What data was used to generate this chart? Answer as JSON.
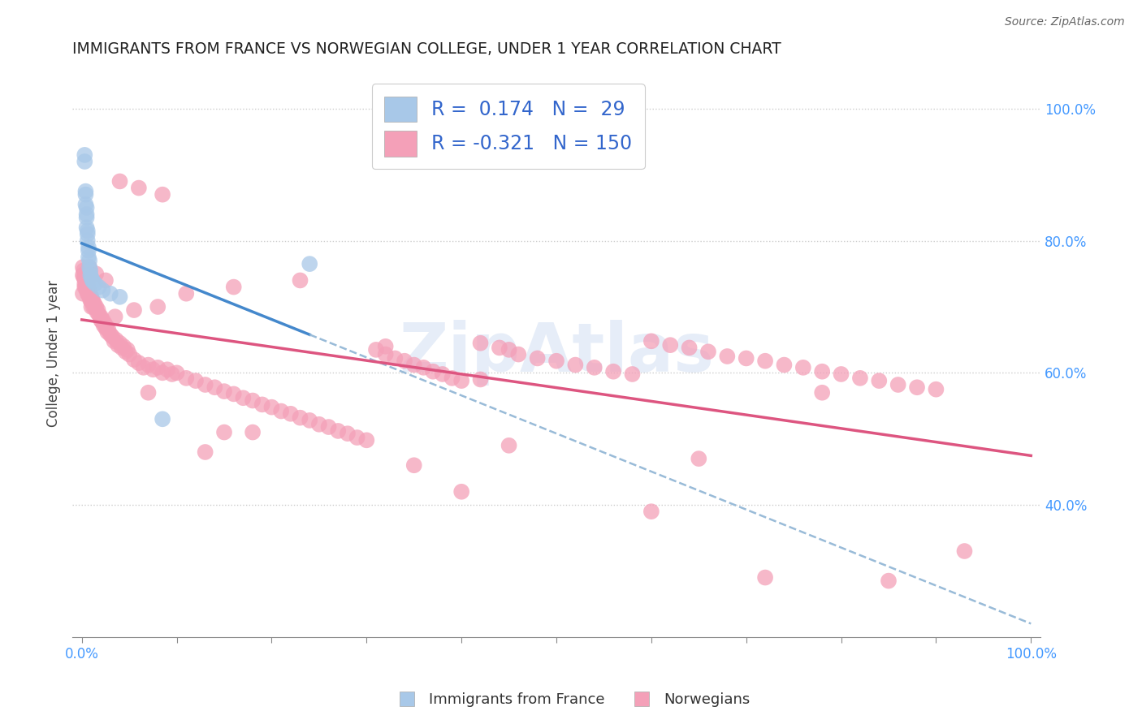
{
  "title": "IMMIGRANTS FROM FRANCE VS NORWEGIAN COLLEGE, UNDER 1 YEAR CORRELATION CHART",
  "source": "Source: ZipAtlas.com",
  "ylabel": "College, Under 1 year",
  "yticks_right": [
    "40.0%",
    "60.0%",
    "80.0%",
    "100.0%"
  ],
  "ytick_values": [
    0.4,
    0.6,
    0.8,
    1.0
  ],
  "blue_R": 0.174,
  "blue_N": 29,
  "pink_R": -0.321,
  "pink_N": 150,
  "blue_scatter_color": "#a8c8e8",
  "pink_scatter_color": "#f4a0b8",
  "blue_line_color": "#4488cc",
  "pink_line_color": "#dd5580",
  "blue_dashed_color": "#99bbd8",
  "background_color": "#ffffff",
  "grid_color": "#cccccc",
  "watermark_color": "#c8d8f0",
  "blue_points_x": [
    0.003,
    0.003,
    0.004,
    0.004,
    0.004,
    0.005,
    0.005,
    0.005,
    0.005,
    0.006,
    0.006,
    0.006,
    0.007,
    0.007,
    0.007,
    0.008,
    0.008,
    0.009,
    0.009,
    0.01,
    0.011,
    0.012,
    0.014,
    0.018,
    0.022,
    0.03,
    0.04,
    0.085,
    0.24
  ],
  "blue_points_y": [
    0.93,
    0.92,
    0.875,
    0.87,
    0.855,
    0.85,
    0.84,
    0.835,
    0.82,
    0.815,
    0.81,
    0.8,
    0.79,
    0.785,
    0.775,
    0.77,
    0.76,
    0.755,
    0.748,
    0.744,
    0.74,
    0.738,
    0.735,
    0.73,
    0.725,
    0.72,
    0.715,
    0.53,
    0.765
  ],
  "pink_points_x": [
    0.001,
    0.001,
    0.002,
    0.002,
    0.003,
    0.003,
    0.003,
    0.004,
    0.004,
    0.004,
    0.005,
    0.005,
    0.005,
    0.006,
    0.006,
    0.006,
    0.007,
    0.007,
    0.008,
    0.008,
    0.009,
    0.009,
    0.01,
    0.01,
    0.01,
    0.011,
    0.012,
    0.012,
    0.013,
    0.014,
    0.015,
    0.016,
    0.017,
    0.018,
    0.02,
    0.021,
    0.022,
    0.023,
    0.024,
    0.025,
    0.026,
    0.027,
    0.028,
    0.03,
    0.032,
    0.034,
    0.036,
    0.038,
    0.04,
    0.042,
    0.044,
    0.046,
    0.048,
    0.05,
    0.055,
    0.06,
    0.065,
    0.07,
    0.075,
    0.08,
    0.085,
    0.09,
    0.095,
    0.1,
    0.11,
    0.12,
    0.13,
    0.14,
    0.15,
    0.16,
    0.17,
    0.18,
    0.19,
    0.2,
    0.21,
    0.22,
    0.23,
    0.24,
    0.25,
    0.26,
    0.27,
    0.28,
    0.29,
    0.3,
    0.31,
    0.32,
    0.33,
    0.34,
    0.35,
    0.36,
    0.37,
    0.38,
    0.39,
    0.4,
    0.42,
    0.44,
    0.45,
    0.46,
    0.48,
    0.5,
    0.52,
    0.54,
    0.56,
    0.58,
    0.6,
    0.62,
    0.64,
    0.66,
    0.68,
    0.7,
    0.72,
    0.74,
    0.76,
    0.78,
    0.8,
    0.82,
    0.84,
    0.86,
    0.88,
    0.9,
    0.001,
    0.003,
    0.008,
    0.015,
    0.025,
    0.04,
    0.06,
    0.085,
    0.02,
    0.035,
    0.055,
    0.08,
    0.11,
    0.16,
    0.23,
    0.32,
    0.42,
    0.15,
    0.35,
    0.6,
    0.78,
    0.93,
    0.07,
    0.18,
    0.4,
    0.65,
    0.85,
    0.13,
    0.45,
    0.72
  ],
  "pink_points_y": [
    0.76,
    0.748,
    0.755,
    0.745,
    0.75,
    0.742,
    0.735,
    0.745,
    0.738,
    0.73,
    0.74,
    0.732,
    0.725,
    0.735,
    0.728,
    0.72,
    0.728,
    0.72,
    0.722,
    0.715,
    0.718,
    0.71,
    0.715,
    0.708,
    0.7,
    0.71,
    0.708,
    0.7,
    0.705,
    0.698,
    0.7,
    0.692,
    0.695,
    0.688,
    0.685,
    0.678,
    0.68,
    0.672,
    0.675,
    0.668,
    0.67,
    0.662,
    0.665,
    0.658,
    0.655,
    0.648,
    0.65,
    0.642,
    0.645,
    0.638,
    0.64,
    0.632,
    0.635,
    0.628,
    0.62,
    0.615,
    0.608,
    0.612,
    0.605,
    0.608,
    0.6,
    0.605,
    0.598,
    0.6,
    0.592,
    0.588,
    0.582,
    0.578,
    0.572,
    0.568,
    0.562,
    0.558,
    0.552,
    0.548,
    0.542,
    0.538,
    0.532,
    0.528,
    0.522,
    0.518,
    0.512,
    0.508,
    0.502,
    0.498,
    0.635,
    0.628,
    0.622,
    0.618,
    0.612,
    0.608,
    0.602,
    0.598,
    0.592,
    0.588,
    0.645,
    0.638,
    0.635,
    0.628,
    0.622,
    0.618,
    0.612,
    0.608,
    0.602,
    0.598,
    0.648,
    0.642,
    0.638,
    0.632,
    0.625,
    0.622,
    0.618,
    0.612,
    0.608,
    0.602,
    0.598,
    0.592,
    0.588,
    0.582,
    0.578,
    0.575,
    0.72,
    0.73,
    0.76,
    0.75,
    0.74,
    0.89,
    0.88,
    0.87,
    0.68,
    0.685,
    0.695,
    0.7,
    0.72,
    0.73,
    0.74,
    0.64,
    0.59,
    0.51,
    0.46,
    0.39,
    0.57,
    0.33,
    0.57,
    0.51,
    0.42,
    0.47,
    0.285,
    0.48,
    0.49,
    0.29
  ]
}
